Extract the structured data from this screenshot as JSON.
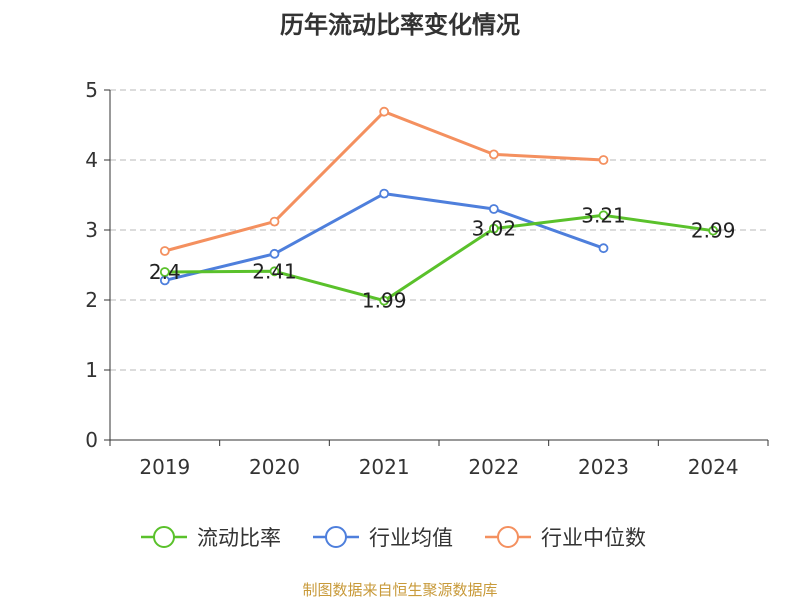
{
  "chart_data": {
    "type": "line",
    "title": "历年流动比率变化情况",
    "categories": [
      "2019",
      "2020",
      "2021",
      "2022",
      "2023",
      "2024"
    ],
    "ylim": [
      0,
      5
    ],
    "yticks": [
      0,
      1,
      2,
      3,
      4,
      5
    ],
    "grid": true,
    "legend_position": "bottom",
    "series": [
      {
        "name": "流动比率",
        "color": "#5ac12b",
        "values": [
          2.4,
          2.41,
          1.99,
          3.02,
          3.21,
          2.99
        ],
        "labels": [
          "2.4",
          "2.41",
          "1.99",
          "3.02",
          "3.21",
          "2.99"
        ]
      },
      {
        "name": "行业均值",
        "color": "#4e7fdc",
        "values": [
          2.28,
          2.66,
          3.52,
          3.3,
          2.74,
          null
        ]
      },
      {
        "name": "行业中位数",
        "color": "#f4905f",
        "values": [
          2.7,
          3.12,
          4.69,
          4.08,
          4.0,
          null
        ]
      }
    ]
  },
  "source": "制图数据来自恒生聚源数据库"
}
